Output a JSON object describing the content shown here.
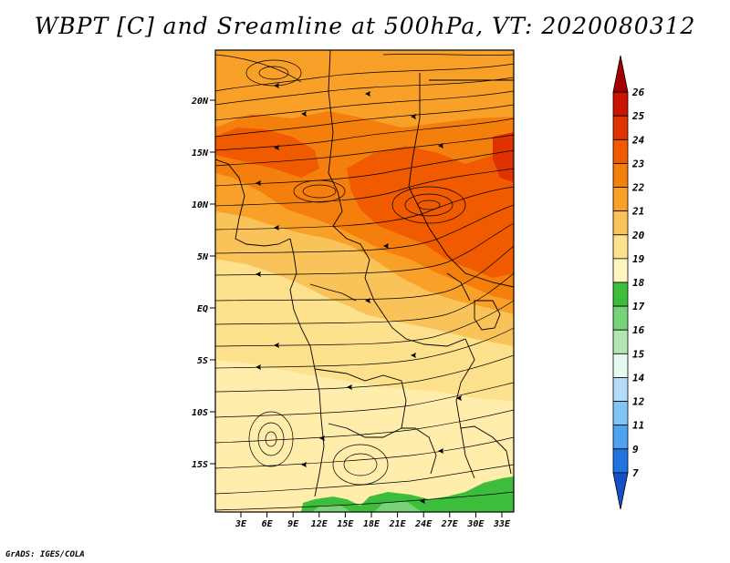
{
  "title": "WBPT [C] and Sreamline at 500hPa, VT: 2020080312",
  "credit": "GrADS: IGES/COLA",
  "lat_labels": [
    "20N",
    "15N",
    "10N",
    "5N",
    "EQ",
    "5S",
    "10S",
    "15S"
  ],
  "lon_labels": [
    "3E",
    "6E",
    "9E",
    "12E",
    "15E",
    "18E",
    "21E",
    "24E",
    "27E",
    "30E",
    "33E"
  ],
  "colorbar": {
    "labels": [
      "26",
      "25",
      "24",
      "23",
      "22",
      "21",
      "20",
      "19",
      "18",
      "17",
      "16",
      "15",
      "14",
      "12",
      "11",
      "9",
      "7"
    ],
    "colors": [
      "#a50000",
      "#c81400",
      "#e03200",
      "#f05a00",
      "#f57f0c",
      "#f8a028",
      "#fac35a",
      "#fde18c",
      "#fff5bf",
      "#3cbe3c",
      "#78d278",
      "#b4e6b4",
      "#e6f8f0",
      "#b4dcf8",
      "#82c3f5",
      "#4ea2ef",
      "#2273e0",
      "#1450c8"
    ]
  },
  "legend_colors": {
    "c26": "#a50000",
    "c24": "#e03200",
    "c23": "#f05a00",
    "c22": "#f57f0c",
    "c21": "#f8a028",
    "c20": "#fac35a",
    "c19": "#fde18c",
    "c18": "#fff5bf",
    "c17": "#3cbe3c"
  }
}
